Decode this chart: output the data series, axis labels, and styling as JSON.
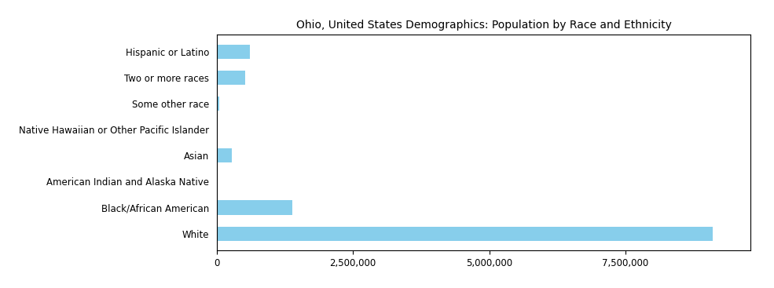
{
  "title": "Ohio, United States Demographics: Population by Race and Ethnicity",
  "categories": [
    "White",
    "Black/African American",
    "American Indian and Alaska Native",
    "Asian",
    "Native Hawaiian or Other Pacific Islander",
    "Some other race",
    "Two or more races",
    "Hispanic or Latino"
  ],
  "values": [
    9100000,
    1380000,
    20000,
    270000,
    10000,
    45000,
    520000,
    610000
  ],
  "bar_color": "#87CEEB",
  "xlim": [
    0,
    9800000
  ],
  "xticks": [
    0,
    2500000,
    5000000,
    7500000
  ],
  "background_color": "#ffffff",
  "title_fontsize": 10,
  "label_fontsize": 8.5
}
